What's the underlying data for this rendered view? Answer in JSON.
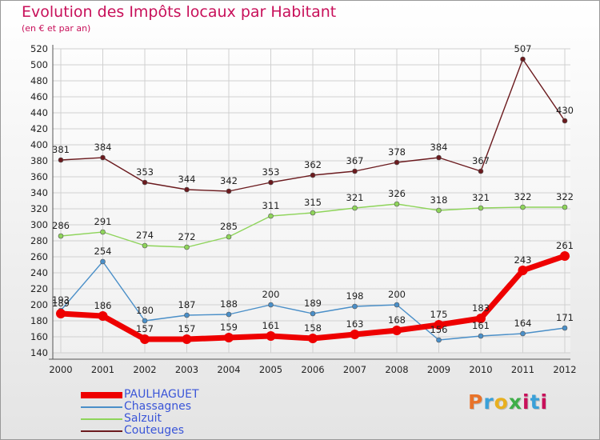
{
  "header": {
    "title": "Evolution des Impôts locaux par Habitant",
    "subtitle": "(en € et par an)"
  },
  "logo": {
    "text": "Proxiti",
    "letter_colors": [
      "#e8732a",
      "#3aa0d8",
      "#e8b020",
      "#3fae49",
      "#c8105a",
      "#3aa0d8",
      "#c8105a"
    ]
  },
  "chart_data": {
    "type": "line",
    "x": [
      "2000",
      "2001",
      "2002",
      "2003",
      "2004",
      "2005",
      "2006",
      "2007",
      "2008",
      "2009",
      "2010",
      "2011",
      "2012"
    ],
    "ylim": [
      140,
      520
    ],
    "yticks": [
      140,
      160,
      180,
      200,
      220,
      240,
      260,
      280,
      300,
      320,
      340,
      360,
      380,
      400,
      420,
      440,
      460,
      480,
      500,
      520
    ],
    "grid": true,
    "legend_position": "bottom-left",
    "series": [
      {
        "name": "Couteuges",
        "color": "#6b1a1e",
        "highlight": false,
        "values": [
          381,
          384,
          353,
          344,
          342,
          353,
          362,
          367,
          378,
          384,
          367,
          507,
          430
        ]
      },
      {
        "name": "Salzuit",
        "color": "#8ed45a",
        "highlight": false,
        "values": [
          286,
          291,
          274,
          272,
          285,
          311,
          315,
          321,
          326,
          318,
          321,
          322,
          322
        ]
      },
      {
        "name": "Chassagnes",
        "color": "#4a8fc8",
        "highlight": false,
        "values": [
          193,
          254,
          180,
          187,
          188,
          200,
          189,
          198,
          200,
          156,
          161,
          164,
          171
        ]
      },
      {
        "name": "PAULHAGUET",
        "color": "#ee0000",
        "highlight": true,
        "values": [
          189,
          186,
          157,
          157,
          159,
          161,
          158,
          163,
          168,
          175,
          183,
          243,
          261
        ]
      }
    ],
    "legend_order": [
      "PAULHAGUET",
      "Chassagnes",
      "Salzuit",
      "Couteuges"
    ]
  }
}
